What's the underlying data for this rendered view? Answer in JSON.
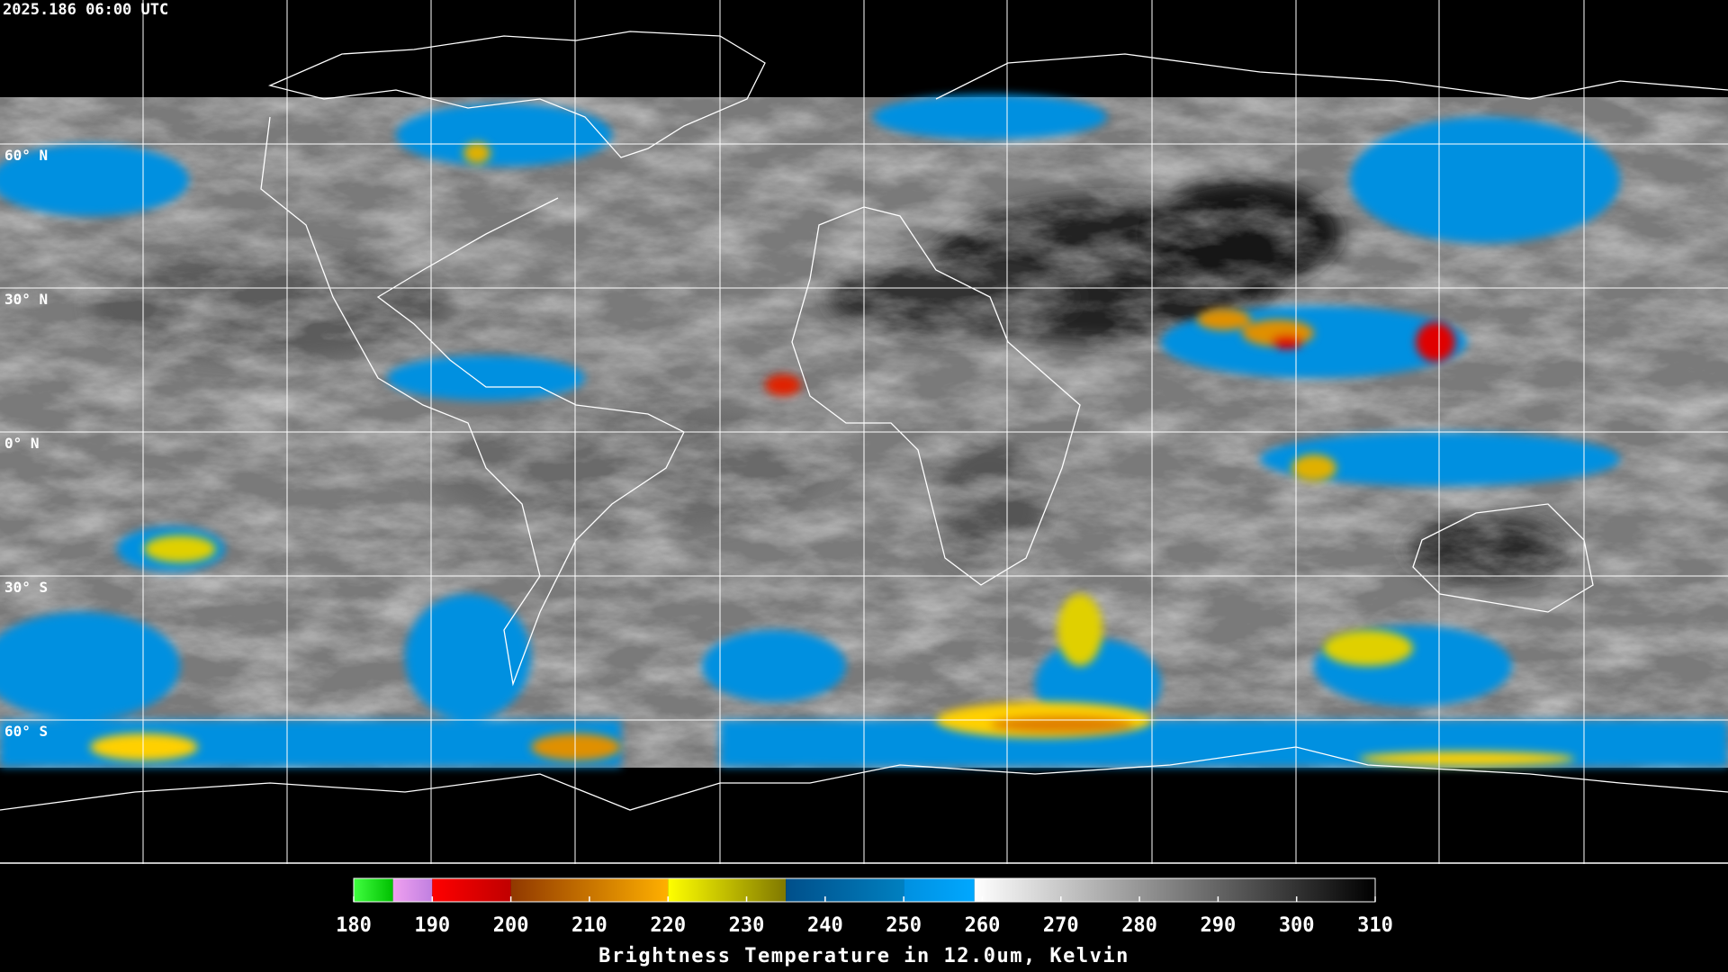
{
  "header": {
    "title": "2025.186 06:00 UTC"
  },
  "map": {
    "lat_labels": [
      "60° N",
      "30° N",
      "0° N",
      "30° S",
      "60° S"
    ]
  },
  "colorbar": {
    "lim": [
      180,
      310
    ],
    "ticks": [
      180,
      190,
      200,
      210,
      220,
      230,
      240,
      250,
      260,
      270,
      280,
      290,
      300,
      310
    ],
    "label": "Brightness Temperature in 12.0um, Kelvin",
    "segments": [
      {
        "from": 180,
        "to": 185,
        "colors": [
          "#40ff40",
          "#00c000"
        ]
      },
      {
        "from": 185,
        "to": 190,
        "colors": [
          "#f0a0f0",
          "#c080e0"
        ]
      },
      {
        "from": 190,
        "to": 200,
        "colors": [
          "#ff0000",
          "#c00000"
        ]
      },
      {
        "from": 200,
        "to": 220,
        "colors": [
          "#903800",
          "#ffb000"
        ]
      },
      {
        "from": 220,
        "to": 235,
        "colors": [
          "#ffff00",
          "#807800"
        ]
      },
      {
        "from": 235,
        "to": 250,
        "colors": [
          "#004f8a",
          "#0080c0"
        ]
      },
      {
        "from": 250,
        "to": 259,
        "colors": [
          "#0090e0",
          "#00a8ff"
        ]
      },
      {
        "from": 259,
        "to": 310,
        "colors": [
          "#ffffff",
          "#000000"
        ]
      }
    ]
  }
}
